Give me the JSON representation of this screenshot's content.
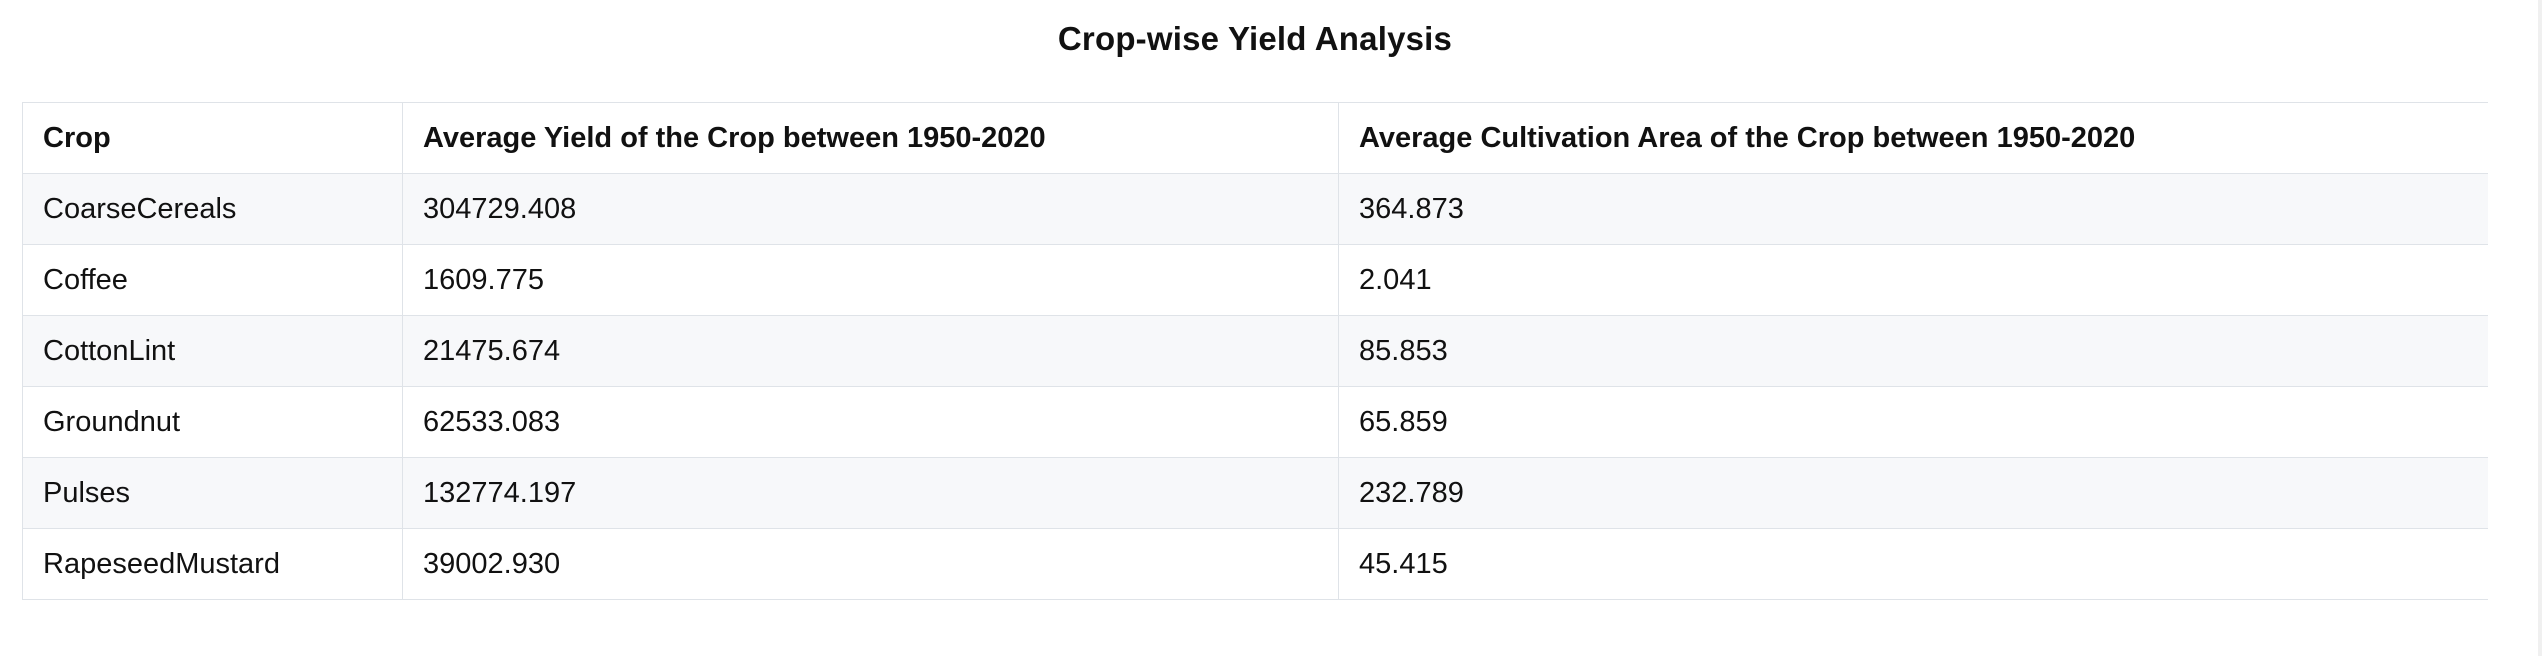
{
  "title": "Crop-wise Yield Analysis",
  "table": {
    "headers": [
      "Crop",
      "Average Yield of the Crop between 1950-2020",
      "Average Cultivation Area of the Crop between 1950-2020"
    ],
    "rows": [
      [
        "CoarseCereals",
        "304729.408",
        "364.873"
      ],
      [
        "Coffee",
        "1609.775",
        "2.041"
      ],
      [
        "CottonLint",
        "21475.674",
        "85.853"
      ],
      [
        "Groundnut",
        "62533.083",
        "65.859"
      ],
      [
        "Pulses",
        "132774.197",
        "232.789"
      ],
      [
        "RapeseedMustard",
        "39002.930",
        "45.415"
      ]
    ]
  },
  "colors": {
    "stripe": "#f7f8fa",
    "border": "#dfe3e8",
    "text": "#111111"
  }
}
